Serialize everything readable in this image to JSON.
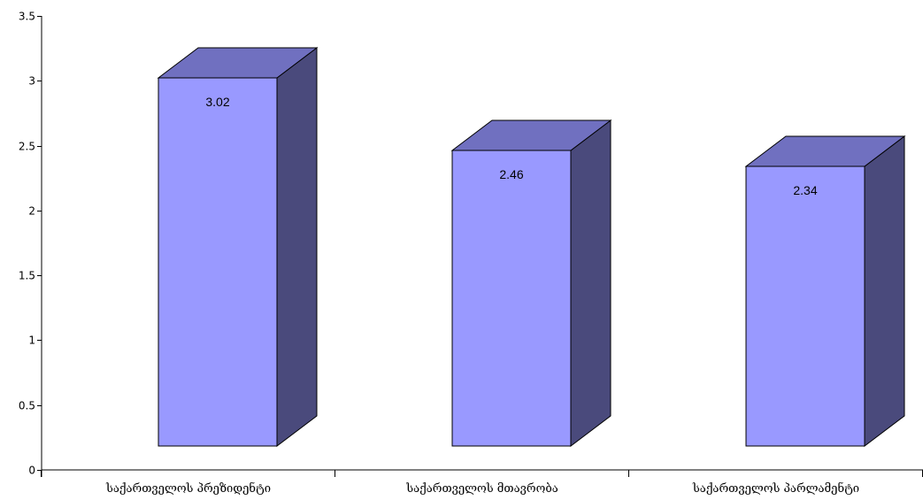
{
  "chart_data": {
    "type": "bar",
    "categories": [
      "საქართველოს პრეზიდენტი",
      "საქართველოს მთავრობა",
      "საქართველოს პარლამენტი"
    ],
    "values": [
      3.02,
      2.46,
      2.34
    ],
    "data_labels": [
      "3.02",
      "2.46",
      "2.34"
    ],
    "title": "",
    "xlabel": "",
    "ylabel": "",
    "ylim": [
      0,
      3.5
    ],
    "yticks": [
      0,
      0.5,
      1,
      1.5,
      2,
      2.5,
      3,
      3.5
    ],
    "ytick_labels": [
      "0",
      "0.5",
      "1",
      "1.5",
      "2",
      "2.5",
      "3",
      "3.5"
    ],
    "grid": false,
    "legend": "none",
    "style": "3d-columns",
    "colors": {
      "front": "#9999FF",
      "top": "#7070C0",
      "side": "#4A4A7C",
      "stroke": "#000000"
    }
  }
}
